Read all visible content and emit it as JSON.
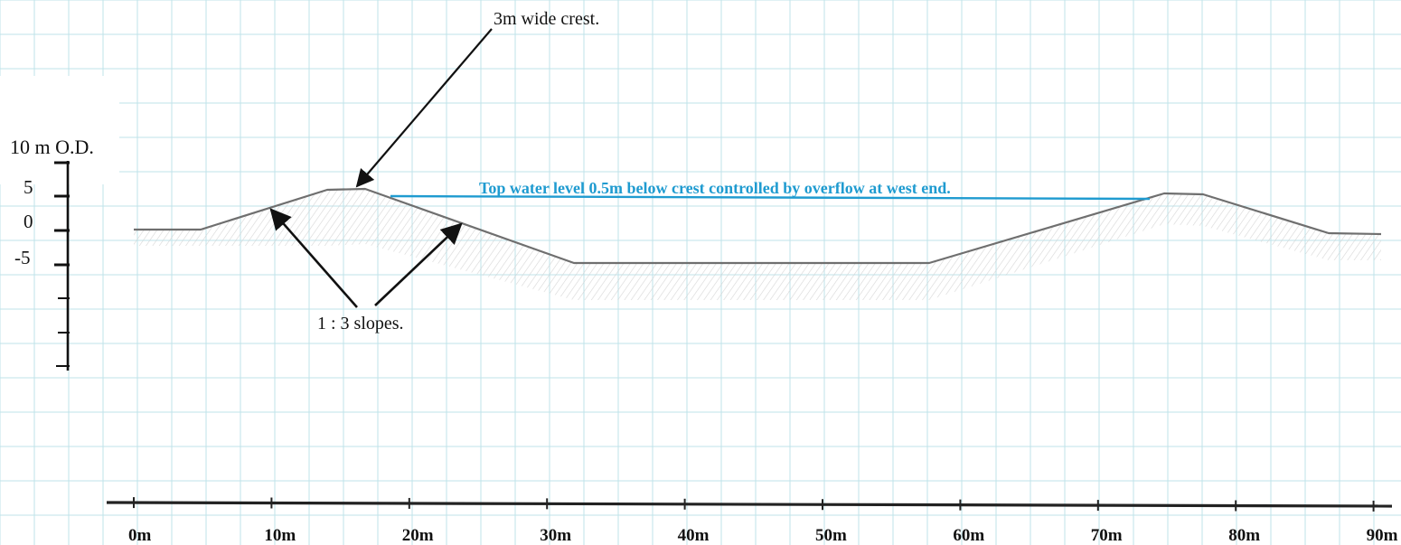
{
  "annotations": {
    "crest": "3m wide crest.",
    "slopes": "1 : 3 slopes.",
    "water_level": "Top water level 0.5m below crest controlled by overflow at west end."
  },
  "y_axis": {
    "labels": [
      "10 m O.D.",
      "5",
      "0",
      "-5"
    ]
  },
  "x_axis": {
    "labels": [
      "0m",
      "10m",
      "20m",
      "30m",
      "40m",
      "50m",
      "60m",
      "70m",
      "80m",
      "90m"
    ]
  },
  "colors": {
    "grid": "#bfe3ea",
    "profile": "#6f6f6f",
    "hatch": "#d7d7d7",
    "water": "#1f9bd0",
    "ink": "#111111"
  }
}
